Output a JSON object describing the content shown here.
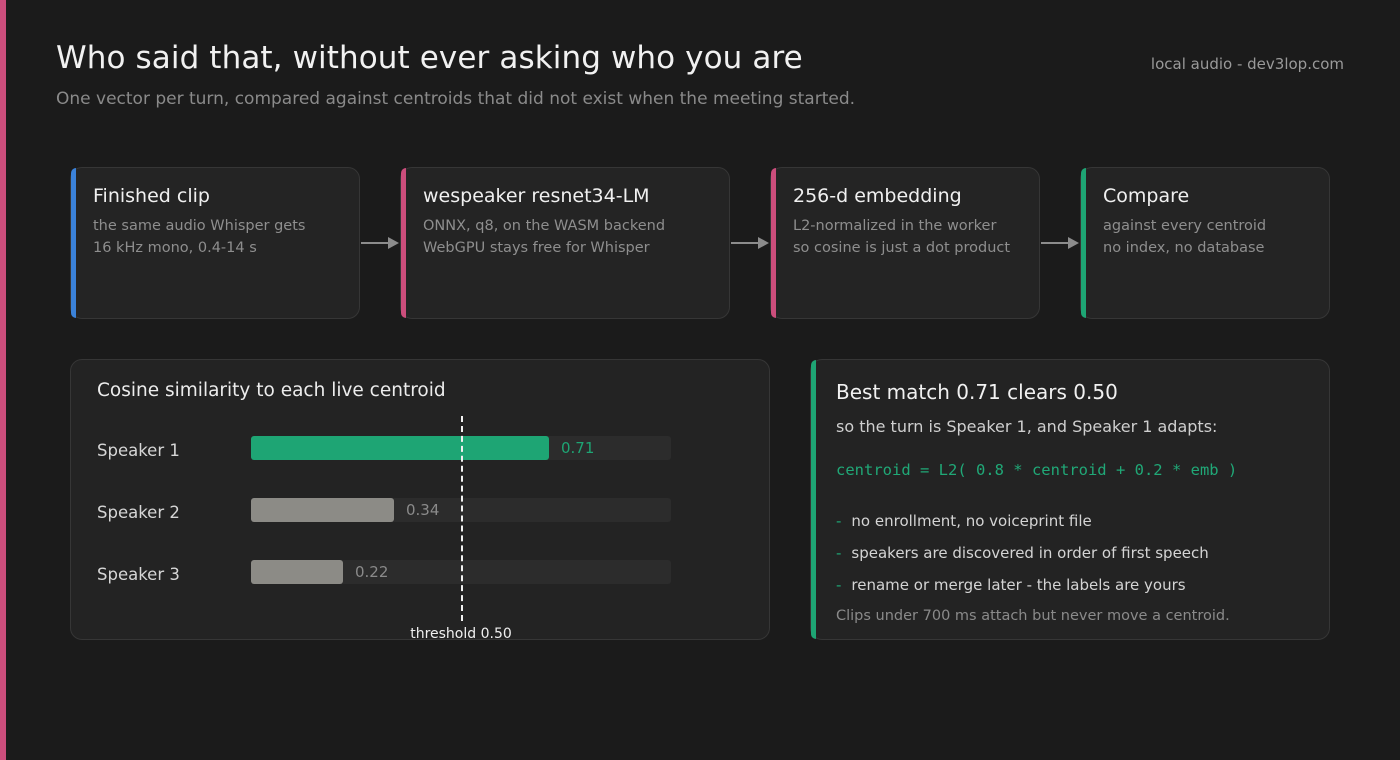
{
  "header": {
    "title": "Who said that, without ever asking who you are",
    "subtitle": "One vector per turn, compared against centroids that did not exist when the meeting started.",
    "source": "local audio - dev3lop.com"
  },
  "pipeline": [
    {
      "title": "Finished clip",
      "lines": [
        "the same audio Whisper gets",
        "16 kHz mono, 0.4-14 s"
      ],
      "color": "#3b82d9"
    },
    {
      "title": "wespeaker resnet34-LM",
      "lines": [
        "ONNX, q8, on the WASM backend",
        "WebGPU stays free for Whisper"
      ],
      "color": "#cc4e7c"
    },
    {
      "title": "256-d embedding",
      "lines": [
        "L2-normalized in the worker",
        "so cosine is just a dot product"
      ],
      "color": "#cc4e7c"
    },
    {
      "title": "Compare",
      "lines": [
        "against every centroid",
        "no index, no database"
      ],
      "color": "#1ea574"
    }
  ],
  "chart_data": {
    "type": "bar",
    "orientation": "horizontal",
    "title": "Cosine similarity to each live centroid",
    "categories": [
      "Speaker 1",
      "Speaker 2",
      "Speaker 3"
    ],
    "values": [
      0.71,
      0.34,
      0.22
    ],
    "value_labels": [
      "0.71",
      "0.34",
      "0.22"
    ],
    "xlim": [
      0,
      1
    ],
    "threshold": 0.5,
    "threshold_label": "threshold 0.50",
    "colors": {
      "match": "#1ea574",
      "other": "#8c8b86",
      "match_label": "#1ea574",
      "other_label": "#8a8a8a"
    }
  },
  "match": {
    "title": "Best match 0.71 clears 0.50",
    "subtitle": "so the turn is Speaker 1, and Speaker 1 adapts:",
    "formula": "centroid = L2( 0.8 * centroid + 0.2 * emb )",
    "bullets": [
      "no enrollment, no voiceprint file",
      "speakers are discovered in order of first speech",
      "rename or merge later - the labels are yours"
    ],
    "bullet_mark": "-",
    "footnote": "Clips under 700 ms attach but never move a centroid."
  }
}
